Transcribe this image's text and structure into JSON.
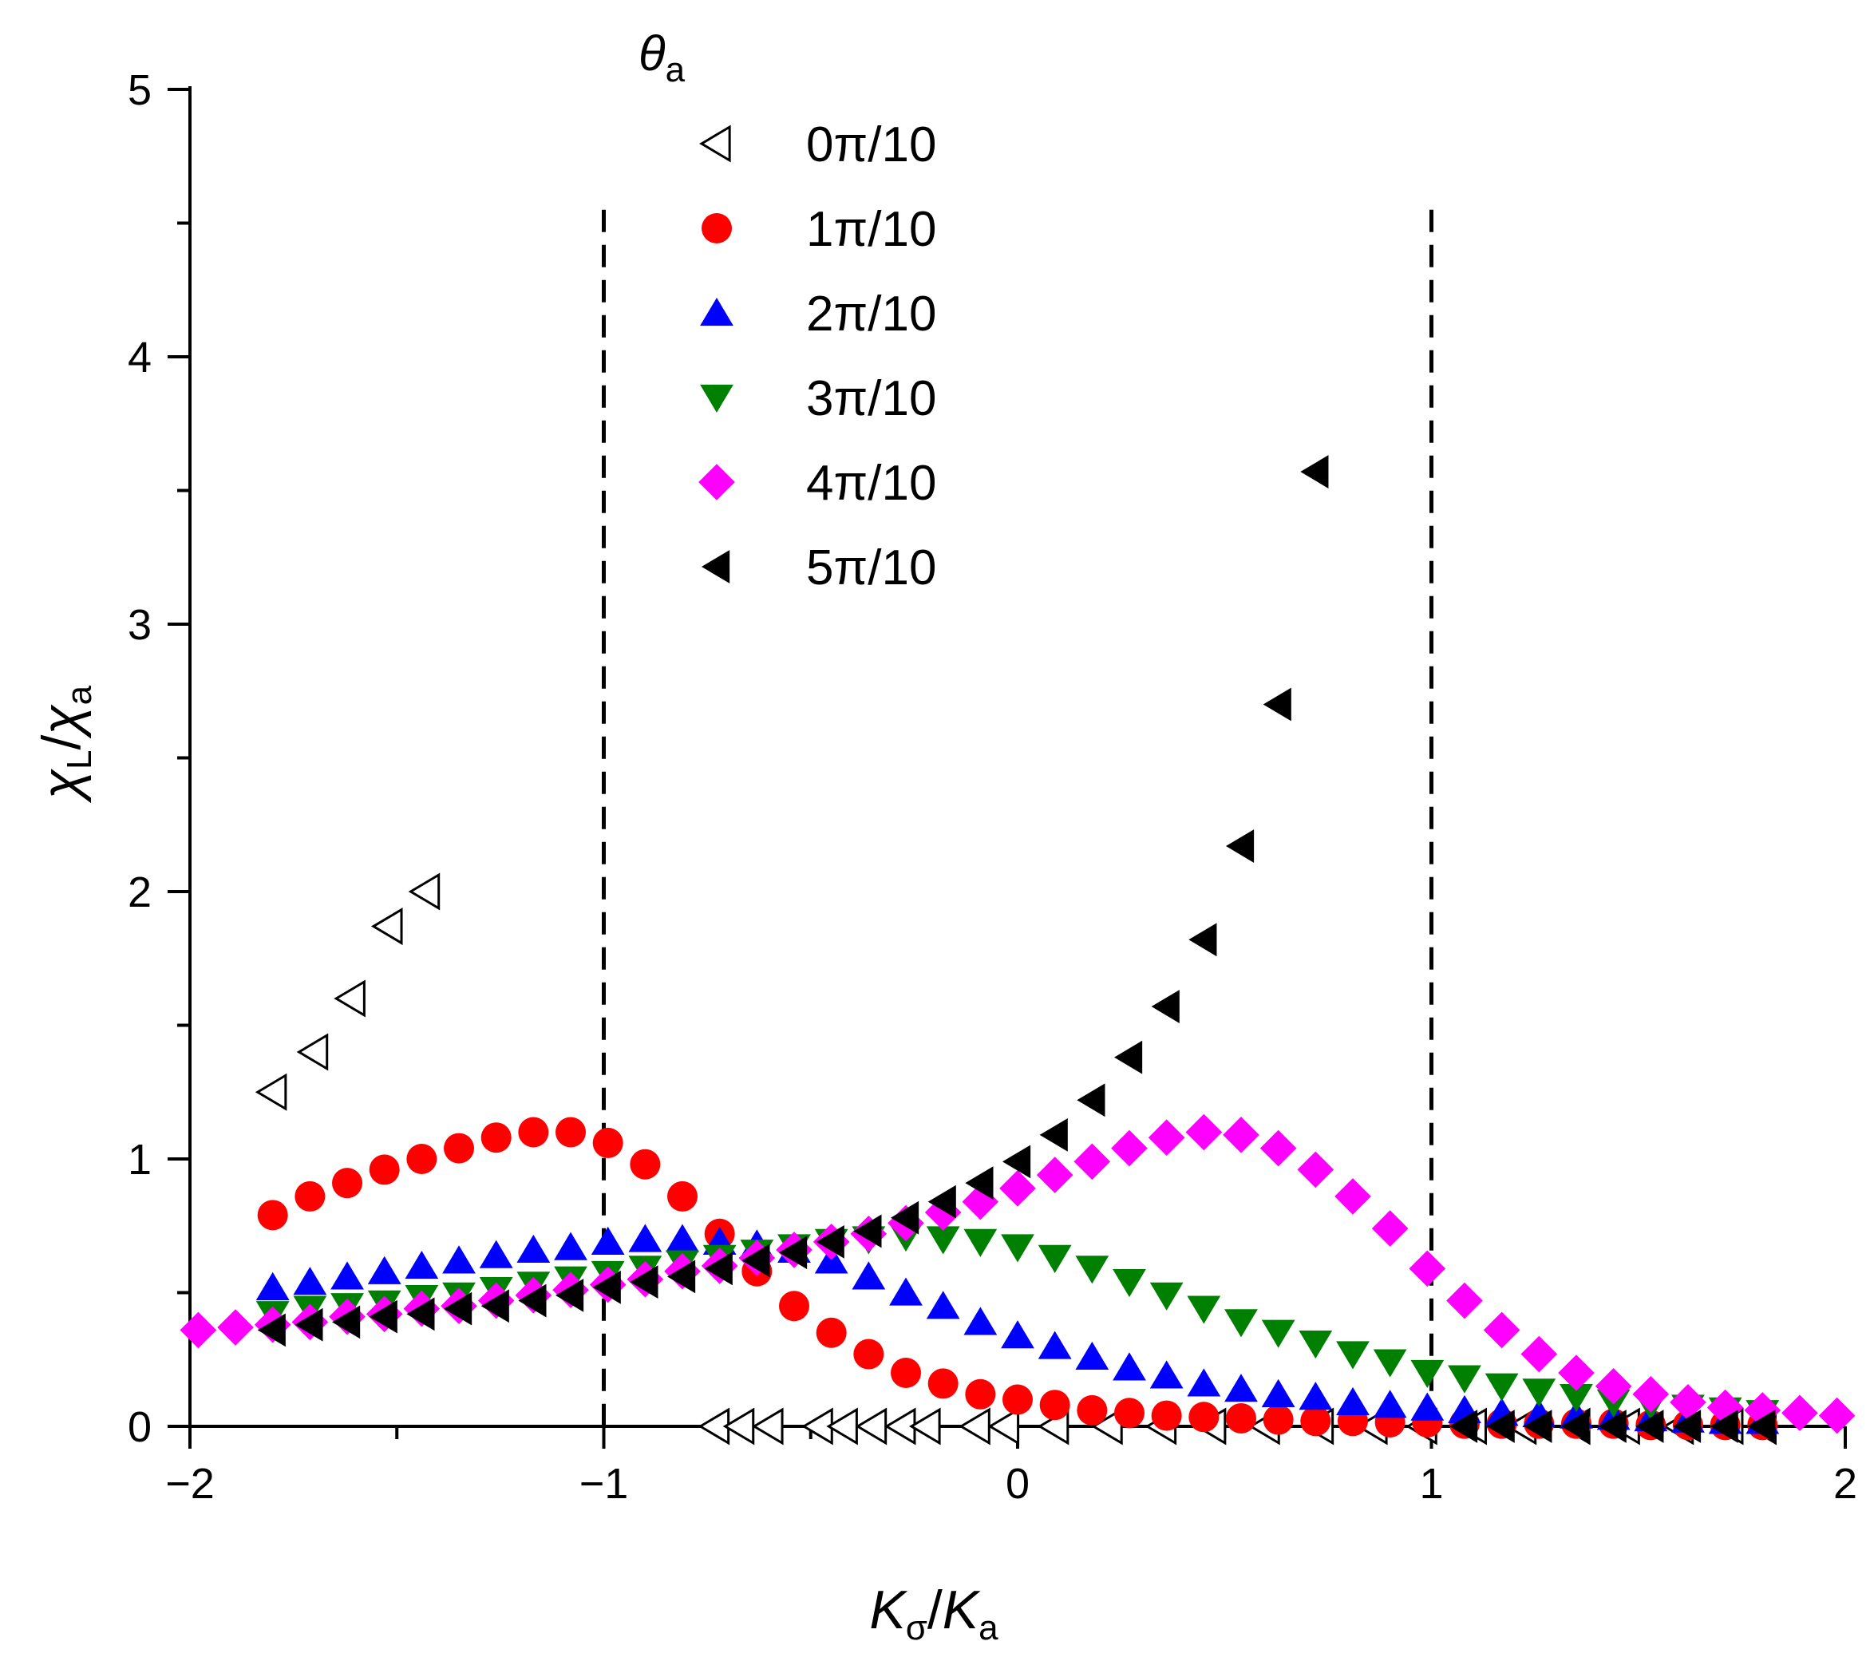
{
  "chart_data": {
    "type": "scatter",
    "xlabel": {
      "main": "K",
      "main_sub": "σ",
      "sep": "/",
      "den": "K",
      "den_sub": "a"
    },
    "ylabel": {
      "main": "χ",
      "main_sub": "L",
      "sep": "/",
      "den": "χ",
      "den_sub": "a"
    },
    "xlim": [
      -2,
      2
    ],
    "ylim": [
      0,
      5
    ],
    "xticks": [
      -2,
      -1,
      0,
      1,
      2
    ],
    "xtick_labels": [
      "−2",
      "−1",
      "0",
      "1",
      "2"
    ],
    "yticks": [
      0,
      1,
      2,
      3,
      4,
      5
    ],
    "ytick_labels": [
      "0",
      "1",
      "2",
      "3",
      "4",
      "5"
    ],
    "reference_lines_x": [
      -1,
      1
    ],
    "horizontal_zero_line": true,
    "grid": false,
    "legend": {
      "title": "θ",
      "title_sub": "a",
      "position": "top-center"
    },
    "series": [
      {
        "name": "0π/10",
        "marker": "triangle-left-open",
        "color": "#000000",
        "points": [
          [
            -1.8,
            1.25
          ],
          [
            -1.7,
            1.4
          ],
          [
            -1.61,
            1.6
          ],
          [
            -1.52,
            1.87
          ],
          [
            -1.43,
            2.0
          ],
          [
            -0.73,
            0
          ],
          [
            -0.67,
            0
          ],
          [
            -0.6,
            0
          ],
          [
            -0.48,
            0
          ],
          [
            -0.42,
            0
          ],
          [
            -0.35,
            0
          ],
          [
            -0.28,
            0
          ],
          [
            -0.22,
            0
          ],
          [
            -0.1,
            0
          ],
          [
            -0.03,
            0
          ],
          [
            0.09,
            0
          ],
          [
            0.22,
            0
          ],
          [
            0.35,
            0
          ],
          [
            0.47,
            0
          ],
          [
            0.6,
            0
          ],
          [
            0.73,
            0
          ],
          [
            0.86,
            0
          ],
          [
            0.98,
            0
          ],
          [
            1.1,
            0
          ],
          [
            1.22,
            0
          ],
          [
            1.35,
            0
          ],
          [
            1.47,
            0
          ],
          [
            1.6,
            0
          ],
          [
            1.72,
            0
          ],
          [
            1.8,
            0
          ]
        ]
      },
      {
        "name": "1π/10",
        "marker": "circle",
        "color": "#ff0000",
        "points": [
          [
            -1.8,
            0.79
          ],
          [
            -1.71,
            0.86
          ],
          [
            -1.62,
            0.91
          ],
          [
            -1.53,
            0.96
          ],
          [
            -1.44,
            1.0
          ],
          [
            -1.35,
            1.04
          ],
          [
            -1.26,
            1.08
          ],
          [
            -1.17,
            1.1
          ],
          [
            -1.08,
            1.1
          ],
          [
            -0.99,
            1.06
          ],
          [
            -0.9,
            0.98
          ],
          [
            -0.81,
            0.86
          ],
          [
            -0.72,
            0.72
          ],
          [
            -0.63,
            0.58
          ],
          [
            -0.54,
            0.45
          ],
          [
            -0.45,
            0.35
          ],
          [
            -0.36,
            0.27
          ],
          [
            -0.27,
            0.2
          ],
          [
            -0.18,
            0.16
          ],
          [
            -0.09,
            0.12
          ],
          [
            0.0,
            0.1
          ],
          [
            0.09,
            0.08
          ],
          [
            0.18,
            0.06
          ],
          [
            0.27,
            0.05
          ],
          [
            0.36,
            0.04
          ],
          [
            0.45,
            0.035
          ],
          [
            0.54,
            0.03
          ],
          [
            0.63,
            0.025
          ],
          [
            0.72,
            0.02
          ],
          [
            0.81,
            0.02
          ],
          [
            0.9,
            0.015
          ],
          [
            0.99,
            0.015
          ],
          [
            1.08,
            0.01
          ],
          [
            1.17,
            0.01
          ],
          [
            1.26,
            0.01
          ],
          [
            1.35,
            0.01
          ],
          [
            1.44,
            0.01
          ],
          [
            1.53,
            0.005
          ],
          [
            1.62,
            0.005
          ],
          [
            1.71,
            0.005
          ],
          [
            1.8,
            0.005
          ]
        ]
      },
      {
        "name": "2π/10",
        "marker": "triangle-up",
        "color": "#0000ff",
        "points": [
          [
            -1.8,
            0.52
          ],
          [
            -1.71,
            0.54
          ],
          [
            -1.62,
            0.56
          ],
          [
            -1.53,
            0.58
          ],
          [
            -1.44,
            0.6
          ],
          [
            -1.35,
            0.62
          ],
          [
            -1.26,
            0.64
          ],
          [
            -1.17,
            0.66
          ],
          [
            -1.08,
            0.67
          ],
          [
            -0.99,
            0.69
          ],
          [
            -0.9,
            0.7
          ],
          [
            -0.81,
            0.7
          ],
          [
            -0.72,
            0.69
          ],
          [
            -0.63,
            0.68
          ],
          [
            -0.54,
            0.66
          ],
          [
            -0.45,
            0.62
          ],
          [
            -0.36,
            0.56
          ],
          [
            -0.27,
            0.5
          ],
          [
            -0.18,
            0.45
          ],
          [
            -0.09,
            0.39
          ],
          [
            0.0,
            0.34
          ],
          [
            0.09,
            0.3
          ],
          [
            0.18,
            0.26
          ],
          [
            0.27,
            0.22
          ],
          [
            0.36,
            0.19
          ],
          [
            0.45,
            0.16
          ],
          [
            0.54,
            0.14
          ],
          [
            0.63,
            0.12
          ],
          [
            0.72,
            0.11
          ],
          [
            0.81,
            0.09
          ],
          [
            0.9,
            0.08
          ],
          [
            0.99,
            0.07
          ],
          [
            1.08,
            0.06
          ],
          [
            1.17,
            0.05
          ],
          [
            1.26,
            0.045
          ],
          [
            1.35,
            0.04
          ],
          [
            1.44,
            0.035
          ],
          [
            1.53,
            0.03
          ],
          [
            1.62,
            0.025
          ],
          [
            1.71,
            0.02
          ],
          [
            1.8,
            0.02
          ]
        ]
      },
      {
        "name": "3π/10",
        "marker": "triangle-down",
        "color": "#008000",
        "points": [
          [
            -1.8,
            0.42
          ],
          [
            -1.71,
            0.44
          ],
          [
            -1.62,
            0.45
          ],
          [
            -1.53,
            0.46
          ],
          [
            -1.44,
            0.48
          ],
          [
            -1.35,
            0.49
          ],
          [
            -1.26,
            0.51
          ],
          [
            -1.17,
            0.53
          ],
          [
            -1.08,
            0.55
          ],
          [
            -0.99,
            0.57
          ],
          [
            -0.9,
            0.59
          ],
          [
            -0.81,
            0.61
          ],
          [
            -0.72,
            0.63
          ],
          [
            -0.63,
            0.65
          ],
          [
            -0.54,
            0.67
          ],
          [
            -0.45,
            0.69
          ],
          [
            -0.36,
            0.7
          ],
          [
            -0.27,
            0.71
          ],
          [
            -0.18,
            0.7
          ],
          [
            -0.09,
            0.69
          ],
          [
            0.0,
            0.67
          ],
          [
            0.09,
            0.63
          ],
          [
            0.18,
            0.59
          ],
          [
            0.27,
            0.54
          ],
          [
            0.36,
            0.49
          ],
          [
            0.45,
            0.44
          ],
          [
            0.54,
            0.39
          ],
          [
            0.63,
            0.35
          ],
          [
            0.72,
            0.31
          ],
          [
            0.81,
            0.27
          ],
          [
            0.9,
            0.24
          ],
          [
            0.99,
            0.2
          ],
          [
            1.08,
            0.18
          ],
          [
            1.17,
            0.15
          ],
          [
            1.26,
            0.13
          ],
          [
            1.35,
            0.11
          ],
          [
            1.44,
            0.09
          ],
          [
            1.53,
            0.08
          ],
          [
            1.62,
            0.07
          ],
          [
            1.71,
            0.06
          ],
          [
            1.8,
            0.05
          ]
        ]
      },
      {
        "name": "4π/10",
        "marker": "diamond",
        "color": "#ff00ff",
        "points": [
          [
            -1.98,
            0.36
          ],
          [
            -1.89,
            0.37
          ],
          [
            -1.8,
            0.38
          ],
          [
            -1.71,
            0.39
          ],
          [
            -1.62,
            0.41
          ],
          [
            -1.53,
            0.42
          ],
          [
            -1.44,
            0.44
          ],
          [
            -1.35,
            0.45
          ],
          [
            -1.26,
            0.47
          ],
          [
            -1.17,
            0.49
          ],
          [
            -1.08,
            0.51
          ],
          [
            -0.99,
            0.53
          ],
          [
            -0.9,
            0.55
          ],
          [
            -0.81,
            0.58
          ],
          [
            -0.72,
            0.6
          ],
          [
            -0.63,
            0.63
          ],
          [
            -0.54,
            0.66
          ],
          [
            -0.45,
            0.69
          ],
          [
            -0.36,
            0.72
          ],
          [
            -0.27,
            0.76
          ],
          [
            -0.18,
            0.8
          ],
          [
            -0.09,
            0.84
          ],
          [
            0.0,
            0.89
          ],
          [
            0.09,
            0.94
          ],
          [
            0.18,
            0.99
          ],
          [
            0.27,
            1.04
          ],
          [
            0.36,
            1.08
          ],
          [
            0.45,
            1.1
          ],
          [
            0.54,
            1.09
          ],
          [
            0.63,
            1.04
          ],
          [
            0.72,
            0.96
          ],
          [
            0.81,
            0.86
          ],
          [
            0.9,
            0.74
          ],
          [
            0.99,
            0.59
          ],
          [
            1.08,
            0.47
          ],
          [
            1.17,
            0.36
          ],
          [
            1.26,
            0.27
          ],
          [
            1.35,
            0.2
          ],
          [
            1.44,
            0.15
          ],
          [
            1.53,
            0.12
          ],
          [
            1.62,
            0.09
          ],
          [
            1.71,
            0.07
          ],
          [
            1.8,
            0.06
          ],
          [
            1.89,
            0.05
          ],
          [
            1.98,
            0.04
          ]
        ]
      },
      {
        "name": "5π/10",
        "marker": "triangle-left",
        "color": "#000000",
        "points": [
          [
            -1.8,
            0.36
          ],
          [
            -1.71,
            0.38
          ],
          [
            -1.62,
            0.39
          ],
          [
            -1.53,
            0.41
          ],
          [
            -1.44,
            0.42
          ],
          [
            -1.35,
            0.44
          ],
          [
            -1.26,
            0.45
          ],
          [
            -1.17,
            0.47
          ],
          [
            -1.08,
            0.49
          ],
          [
            -0.99,
            0.52
          ],
          [
            -0.9,
            0.54
          ],
          [
            -0.81,
            0.56
          ],
          [
            -0.72,
            0.59
          ],
          [
            -0.63,
            0.62
          ],
          [
            -0.54,
            0.65
          ],
          [
            -0.45,
            0.69
          ],
          [
            -0.36,
            0.73
          ],
          [
            -0.27,
            0.78
          ],
          [
            -0.18,
            0.84
          ],
          [
            -0.09,
            0.91
          ],
          [
            0.0,
            0.99
          ],
          [
            0.09,
            1.09
          ],
          [
            0.18,
            1.22
          ],
          [
            0.27,
            1.38
          ],
          [
            0.36,
            1.57
          ],
          [
            0.45,
            1.82
          ],
          [
            0.54,
            2.17
          ],
          [
            0.63,
            2.7
          ],
          [
            0.72,
            3.57
          ],
          [
            1.08,
            0
          ],
          [
            1.17,
            0
          ],
          [
            1.26,
            0
          ],
          [
            1.35,
            0
          ],
          [
            1.44,
            0
          ],
          [
            1.53,
            0
          ],
          [
            1.62,
            0
          ],
          [
            1.71,
            0
          ],
          [
            1.8,
            0
          ]
        ]
      }
    ]
  }
}
